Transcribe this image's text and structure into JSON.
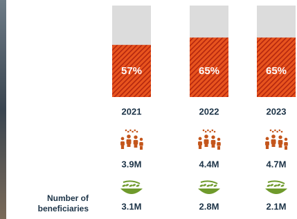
{
  "chart_data": {
    "type": "bar",
    "categories": [
      "2021",
      "2022",
      "2023"
    ],
    "values": [
      57,
      65,
      65
    ],
    "value_labels": [
      "57%",
      "65%",
      "65%"
    ],
    "ylim": [
      0,
      100
    ],
    "color": "#e8541e",
    "stripe_color": "#b3260f",
    "track_color": "#dcdcdc",
    "people_labels": [
      "3.9M",
      "4.4M",
      "4.7M"
    ],
    "grain_labels": [
      "3.1M",
      "2.8M",
      "2.1M"
    ],
    "row_label": "Number of beneficiaries"
  }
}
